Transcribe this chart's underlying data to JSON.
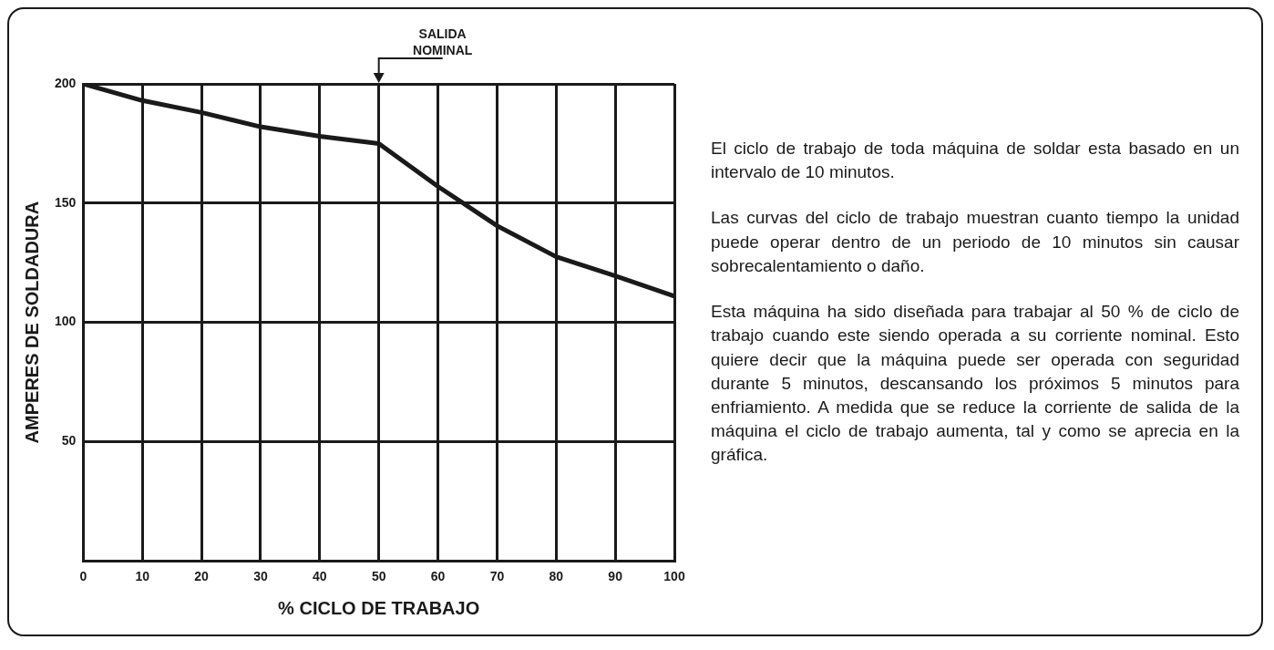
{
  "chart_data": {
    "type": "line",
    "xlabel": "% CICLO DE TRABAJO",
    "ylabel": "AMPERES DE SOLDADURA",
    "x": [
      0,
      10,
      20,
      30,
      40,
      50,
      60,
      70,
      80,
      90,
      100
    ],
    "series": [
      {
        "color": "#1a1a1a",
        "values": [
          200,
          193,
          188,
          182,
          178,
          175,
          157,
          140.5,
          127.5,
          119.5,
          111
        ]
      }
    ],
    "xlim": [
      0,
      100
    ],
    "xticks": [
      0,
      10,
      20,
      30,
      40,
      50,
      60,
      70,
      80,
      90,
      100
    ],
    "ylim": [
      0,
      200
    ],
    "yticks": [
      {
        "value": 0,
        "label": null
      },
      50,
      100,
      150,
      200
    ],
    "grid": true,
    "legend": false,
    "marker": "none",
    "line_style": "solid",
    "annotations": [
      "SALIDA NOMINAL",
      "El ciclo de trabajo de toda máquina de soldar esta basado en un intervalo de 10 minutos.",
      "Las curvas del ciclo de trabajo muestran cuanto tiempo la unidad puede operar dentro de un periodo de 10 minutos sin causar sobrecalentamiento o daño.",
      "Esta máquina ha sido diseñada para trabajar al 50 % de ciclo de trabajo cuando este siendo operada a su corriente nominal. Esto quiere decir que la máquina puede ser operada con seguridad durante 5 minutos, descansando los próximos 5 minutos para enfriamiento. A medida que se reduce la corriente de salida de la máquina el ciclo de trabajo aumenta, tal y como se aprecia en la gráfica."
    ]
  }
}
